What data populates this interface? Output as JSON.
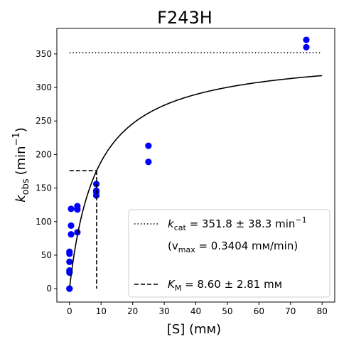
{
  "chart_data": {
    "type": "scatter",
    "title": "F243H",
    "xlabel": "[S] (mм)",
    "ylabel": "k_obs (min⁻¹)",
    "ylabel_main": "k",
    "ylabel_sub": "obs",
    "ylabel_unit": "(min",
    "ylabel_sup": "−1",
    "ylabel_close": ")",
    "xlim": [
      -4,
      84
    ],
    "ylim": [
      -20,
      388
    ],
    "xticks": [
      0,
      10,
      20,
      30,
      40,
      50,
      60,
      70,
      80
    ],
    "yticks": [
      0,
      50,
      100,
      150,
      200,
      250,
      300,
      350
    ],
    "grid": false,
    "legend_position": "lower-right",
    "point_color": "#0000ff",
    "series": [
      {
        "kind": "scatter",
        "x": [
          0,
          0,
          0,
          0,
          0,
          0,
          0,
          0.5,
          0.5,
          0.5,
          2.5,
          2.5,
          2.5,
          8.5,
          8.5,
          8.5,
          8.5,
          25,
          25,
          75,
          75
        ],
        "y": [
          0,
          0,
          24,
          27,
          40,
          52,
          55,
          81,
          94,
          119,
          84,
          118,
          123,
          139,
          144,
          146,
          156,
          189,
          213,
          360,
          371
        ]
      },
      {
        "kind": "fit",
        "model": "michaelis-menten",
        "x_range": [
          0,
          80
        ],
        "kcat": 351.8,
        "KM": 8.6
      },
      {
        "kind": "hline-dotted",
        "y": 351.8,
        "x_range": [
          0,
          80
        ]
      },
      {
        "kind": "km-dashed",
        "x": 8.6,
        "y": 175.9
      }
    ],
    "legend": {
      "kcat": {
        "sym": "k",
        "sub": "cat",
        "text": " = 351.8 ± 38.3 min",
        "sup": "−1"
      },
      "vmax": {
        "open": "(v",
        "sub": "max",
        "text": " = 0.3404 mм/min)"
      },
      "km": {
        "sym": "K",
        "sub": "M",
        "text": " = 8.60 ± 2.81 mм"
      }
    }
  }
}
